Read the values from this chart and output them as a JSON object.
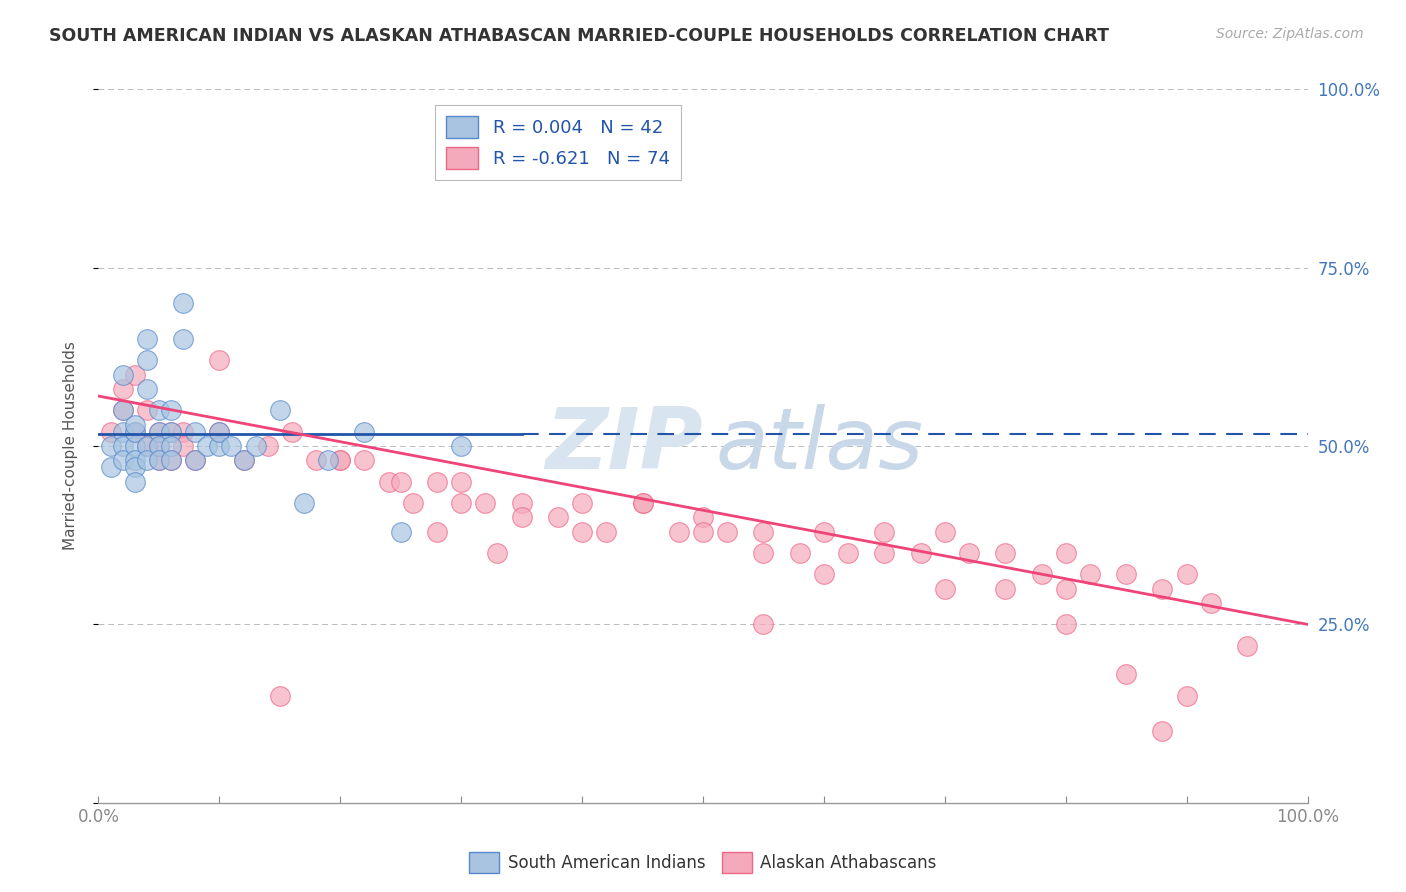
{
  "title": "SOUTH AMERICAN INDIAN VS ALASKAN ATHABASCAN MARRIED-COUPLE HOUSEHOLDS CORRELATION CHART",
  "source": "Source: ZipAtlas.com",
  "ylabel": "Married-couple Households",
  "legend_blue_label": "R = 0.004   N = 42",
  "legend_pink_label": "R = -0.621   N = 74",
  "legend_label_blue": "South American Indians",
  "legend_label_pink": "Alaskan Athabascans",
  "blue_color": "#A8C4E0",
  "pink_color": "#F4AABB",
  "blue_edge_color": "#5588CC",
  "pink_edge_color": "#EE6688",
  "blue_line_color": "#2255AA",
  "pink_line_color": "#EE4477",
  "grid_color": "#BBBBBB",
  "background_color": "#FFFFFF",
  "title_color": "#333333",
  "source_color": "#AAAAAA",
  "tick_label_color": "#4477BB",
  "watermark_color": "#D8E4F0",
  "blue_scatter_x": [
    0.01,
    0.01,
    0.02,
    0.02,
    0.02,
    0.02,
    0.02,
    0.03,
    0.03,
    0.03,
    0.03,
    0.03,
    0.03,
    0.04,
    0.04,
    0.04,
    0.04,
    0.04,
    0.05,
    0.05,
    0.05,
    0.05,
    0.06,
    0.06,
    0.06,
    0.06,
    0.07,
    0.07,
    0.08,
    0.08,
    0.09,
    0.1,
    0.1,
    0.11,
    0.12,
    0.13,
    0.15,
    0.17,
    0.19,
    0.22,
    0.25,
    0.3
  ],
  "blue_scatter_y": [
    0.5,
    0.47,
    0.52,
    0.5,
    0.48,
    0.55,
    0.6,
    0.5,
    0.48,
    0.52,
    0.53,
    0.47,
    0.45,
    0.62,
    0.58,
    0.65,
    0.5,
    0.48,
    0.52,
    0.5,
    0.55,
    0.48,
    0.52,
    0.5,
    0.48,
    0.55,
    0.7,
    0.65,
    0.52,
    0.48,
    0.5,
    0.5,
    0.52,
    0.5,
    0.48,
    0.5,
    0.55,
    0.42,
    0.48,
    0.52,
    0.38,
    0.5
  ],
  "pink_scatter_x": [
    0.01,
    0.02,
    0.02,
    0.03,
    0.03,
    0.04,
    0.04,
    0.05,
    0.05,
    0.05,
    0.06,
    0.06,
    0.07,
    0.07,
    0.08,
    0.1,
    0.12,
    0.14,
    0.16,
    0.18,
    0.2,
    0.22,
    0.24,
    0.26,
    0.28,
    0.3,
    0.32,
    0.35,
    0.38,
    0.4,
    0.42,
    0.45,
    0.48,
    0.5,
    0.52,
    0.55,
    0.58,
    0.6,
    0.62,
    0.65,
    0.68,
    0.7,
    0.72,
    0.75,
    0.78,
    0.8,
    0.82,
    0.85,
    0.88,
    0.9,
    0.92,
    0.95,
    0.2,
    0.25,
    0.3,
    0.35,
    0.4,
    0.45,
    0.5,
    0.55,
    0.6,
    0.65,
    0.7,
    0.75,
    0.8,
    0.85,
    0.9,
    0.28,
    0.33,
    0.1,
    0.15,
    0.55,
    0.8,
    0.88
  ],
  "pink_scatter_y": [
    0.52,
    0.58,
    0.55,
    0.6,
    0.52,
    0.55,
    0.5,
    0.52,
    0.48,
    0.5,
    0.52,
    0.48,
    0.52,
    0.5,
    0.48,
    0.52,
    0.48,
    0.5,
    0.52,
    0.48,
    0.48,
    0.48,
    0.45,
    0.42,
    0.45,
    0.45,
    0.42,
    0.42,
    0.4,
    0.42,
    0.38,
    0.42,
    0.38,
    0.4,
    0.38,
    0.38,
    0.35,
    0.38,
    0.35,
    0.38,
    0.35,
    0.38,
    0.35,
    0.35,
    0.32,
    0.35,
    0.32,
    0.32,
    0.3,
    0.32,
    0.28,
    0.22,
    0.48,
    0.45,
    0.42,
    0.4,
    0.38,
    0.42,
    0.38,
    0.35,
    0.32,
    0.35,
    0.3,
    0.3,
    0.3,
    0.18,
    0.15,
    0.38,
    0.35,
    0.62,
    0.15,
    0.25,
    0.25,
    0.1
  ]
}
